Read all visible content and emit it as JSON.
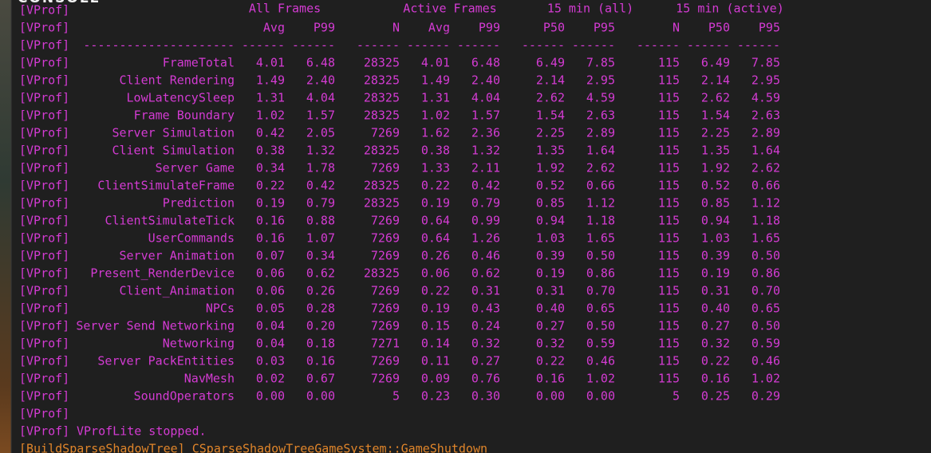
{
  "window": {
    "title": "CONSOLE"
  },
  "console": {
    "prefix": "[VProf]",
    "group_headers": [
      "All Frames",
      "Active Frames",
      "15 min (all)",
      "15 min (active)"
    ],
    "column_headers": [
      "Avg",
      "P99",
      "N",
      "Avg",
      "P99",
      "P50",
      "P95",
      "N",
      "P50",
      "P95"
    ],
    "separators": [
      "---------------------",
      "------",
      "------",
      "------",
      "------",
      "------",
      "------",
      "------",
      "------",
      "------",
      "------"
    ],
    "rows": [
      [
        "FrameTotal",
        "4.01",
        "6.48",
        "28325",
        "4.01",
        "6.48",
        "6.49",
        "7.85",
        "115",
        "6.49",
        "7.85"
      ],
      [
        "Client Rendering",
        "1.49",
        "2.40",
        "28325",
        "1.49",
        "2.40",
        "2.14",
        "2.95",
        "115",
        "2.14",
        "2.95"
      ],
      [
        "LowLatencySleep",
        "1.31",
        "4.04",
        "28325",
        "1.31",
        "4.04",
        "2.62",
        "4.59",
        "115",
        "2.62",
        "4.59"
      ],
      [
        "Frame Boundary",
        "1.02",
        "1.57",
        "28325",
        "1.02",
        "1.57",
        "1.54",
        "2.63",
        "115",
        "1.54",
        "2.63"
      ],
      [
        "Server Simulation",
        "0.42",
        "2.05",
        "7269",
        "1.62",
        "2.36",
        "2.25",
        "2.89",
        "115",
        "2.25",
        "2.89"
      ],
      [
        "Client Simulation",
        "0.38",
        "1.32",
        "28325",
        "0.38",
        "1.32",
        "1.35",
        "1.64",
        "115",
        "1.35",
        "1.64"
      ],
      [
        "Server Game",
        "0.34",
        "1.78",
        "7269",
        "1.33",
        "2.11",
        "1.92",
        "2.62",
        "115",
        "1.92",
        "2.62"
      ],
      [
        "ClientSimulateFrame",
        "0.22",
        "0.42",
        "28325",
        "0.22",
        "0.42",
        "0.52",
        "0.66",
        "115",
        "0.52",
        "0.66"
      ],
      [
        "Prediction",
        "0.19",
        "0.79",
        "28325",
        "0.19",
        "0.79",
        "0.85",
        "1.12",
        "115",
        "0.85",
        "1.12"
      ],
      [
        "ClientSimulateTick",
        "0.16",
        "0.88",
        "7269",
        "0.64",
        "0.99",
        "0.94",
        "1.18",
        "115",
        "0.94",
        "1.18"
      ],
      [
        "UserCommands",
        "0.16",
        "1.07",
        "7269",
        "0.64",
        "1.26",
        "1.03",
        "1.65",
        "115",
        "1.03",
        "1.65"
      ],
      [
        "Server Animation",
        "0.07",
        "0.34",
        "7269",
        "0.26",
        "0.46",
        "0.39",
        "0.50",
        "115",
        "0.39",
        "0.50"
      ],
      [
        "Present_RenderDevice",
        "0.06",
        "0.62",
        "28325",
        "0.06",
        "0.62",
        "0.19",
        "0.86",
        "115",
        "0.19",
        "0.86"
      ],
      [
        "Client_Animation",
        "0.06",
        "0.26",
        "7269",
        "0.22",
        "0.31",
        "0.31",
        "0.70",
        "115",
        "0.31",
        "0.70"
      ],
      [
        "NPCs",
        "0.05",
        "0.28",
        "7269",
        "0.19",
        "0.43",
        "0.40",
        "0.65",
        "115",
        "0.40",
        "0.65"
      ],
      [
        "Server Send Networking",
        "0.04",
        "0.20",
        "7269",
        "0.15",
        "0.24",
        "0.27",
        "0.50",
        "115",
        "0.27",
        "0.50"
      ],
      [
        "Networking",
        "0.04",
        "0.18",
        "7271",
        "0.14",
        "0.32",
        "0.32",
        "0.59",
        "115",
        "0.32",
        "0.59"
      ],
      [
        "Server PackEntities",
        "0.03",
        "0.16",
        "7269",
        "0.11",
        "0.27",
        "0.22",
        "0.46",
        "115",
        "0.22",
        "0.46"
      ],
      [
        "NavMesh",
        "0.02",
        "0.67",
        "7269",
        "0.09",
        "0.76",
        "0.16",
        "1.02",
        "115",
        "0.16",
        "1.02"
      ],
      [
        "SoundOperators",
        "0.00",
        "0.00",
        "5",
        "0.23",
        "0.30",
        "0.00",
        "0.00",
        "5",
        "0.25",
        "0.29"
      ]
    ],
    "stopped_message": "VProfLite stopped.",
    "last_line": "[BuildSparseShadowTree] CSparseShadowTreeGameSystem::GameShutdown"
  }
}
